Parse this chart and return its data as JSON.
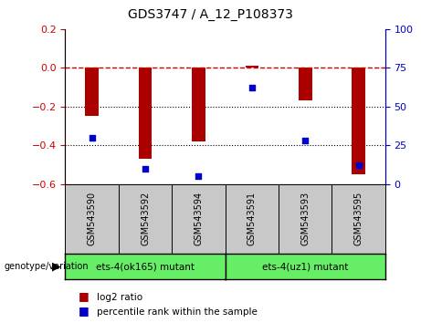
{
  "title": "GDS3747 / A_12_P108373",
  "samples": [
    "GSM543590",
    "GSM543592",
    "GSM543594",
    "GSM543591",
    "GSM543593",
    "GSM543595"
  ],
  "log2_ratio": [
    -0.25,
    -0.47,
    -0.38,
    0.01,
    -0.17,
    -0.55
  ],
  "percentile_rank": [
    30,
    10,
    5,
    62,
    28,
    12
  ],
  "ylim_left": [
    -0.6,
    0.2
  ],
  "ylim_right": [
    0,
    100
  ],
  "groups": [
    {
      "label": "ets-4(ok165) mutant",
      "color": "#66EE66"
    },
    {
      "label": "ets-4(uz1) mutant",
      "color": "#66EE66"
    }
  ],
  "bar_color": "#AA0000",
  "dot_color": "#0000CC",
  "hline_color": "#CC0000",
  "grid_color": "#000000",
  "bg_color": "#FFFFFF",
  "sample_box_color": "#C8C8C8",
  "tick_label_color_left": "#CC0000",
  "tick_label_color_right": "#0000CC",
  "legend_log2_label": "log2 ratio",
  "legend_pct_label": "percentile rank within the sample",
  "genotype_label": "genotype/variation"
}
